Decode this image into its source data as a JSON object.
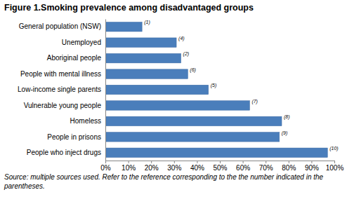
{
  "chart_data": {
    "type": "bar",
    "orientation": "horizontal",
    "title": "Figure 1.Smoking prevalence among disadvantaged groups",
    "categories": [
      "General population (NSW)",
      "Unemployed",
      "Aboriginal people",
      "People with mental illness",
      "Low-income single parents",
      "Vulnerable young people",
      "Homeless",
      "People in prisons",
      "People who inject drugs"
    ],
    "values": [
      16,
      31,
      33,
      36,
      45,
      63,
      77,
      76,
      97
    ],
    "annotations": [
      "(1)",
      "(4)",
      "(2)",
      "(6)",
      "(5)",
      "(7)",
      "(8)",
      "(9)",
      "(10)"
    ],
    "source": "Source: multiple sources used. Refer to the reference corresponding to the the number indicated in the parentheses.",
    "color": "#4a7ebb",
    "xlim": [
      0,
      100
    ],
    "xticks": [
      {
        "value": 0,
        "label": "0%"
      },
      {
        "value": 10,
        "label": "10%"
      },
      {
        "value": 20,
        "label": "20%"
      },
      {
        "value": 30,
        "label": "30%"
      },
      {
        "value": 40,
        "label": "40%"
      },
      {
        "value": 50,
        "label": "50%"
      },
      {
        "value": 60,
        "label": "60%"
      },
      {
        "value": 70,
        "label": "70%"
      },
      {
        "value": 80,
        "label": "80%"
      },
      {
        "value": 90,
        "label": "90%"
      },
      {
        "value": 100,
        "label": "100%"
      }
    ],
    "grid": false
  }
}
